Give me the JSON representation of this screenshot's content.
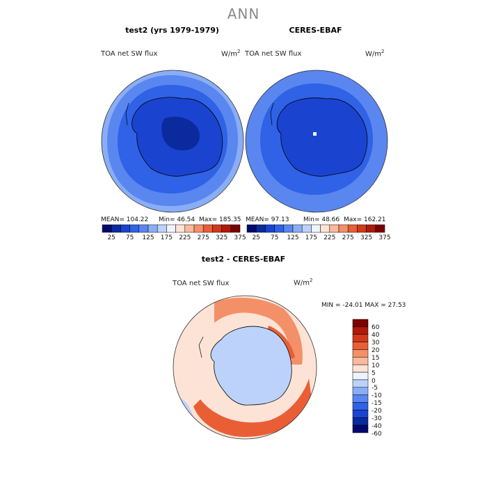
{
  "page": {
    "title": "ANN"
  },
  "panels": [
    {
      "id": "test",
      "title": "test2 (yrs 1979-1979)",
      "variable": "TOA net SW flux",
      "units_base": "W/m",
      "units_exp": "2",
      "stats": {
        "mean": "MEAN=  104.22",
        "min": "Min=   46.54",
        "max": "Max=  185.35"
      }
    },
    {
      "id": "obs",
      "title": "CERES-EBAF",
      "variable": "TOA net SW flux",
      "units_base": "W/m",
      "units_exp": "2",
      "stats": {
        "mean": "MEAN=   97.13",
        "min": "Min=   48.66",
        "max": "Max=  162.21"
      }
    },
    {
      "id": "diff",
      "title": "test2 - CERES-EBAF",
      "variable": "TOA net SW flux",
      "units_base": "W/m",
      "units_exp": "2",
      "stats": {
        "minmax": "MIN = -24.01 MAX =  27.53"
      }
    }
  ],
  "top_colorbar": {
    "colors": [
      "#000a6e",
      "#0a2a9e",
      "#1a44d0",
      "#2f62e6",
      "#5a86f0",
      "#8aaef6",
      "#bcd2fb",
      "#eef3fd",
      "#fde3d5",
      "#f9b99a",
      "#f39068",
      "#ea5e36",
      "#d2391a",
      "#b11a08",
      "#7c0000"
    ],
    "tick_labels": [
      "25",
      "75",
      "125",
      "175",
      "225",
      "275",
      "325",
      "375"
    ]
  },
  "diff_colorbar": {
    "colors": [
      "#000a6e",
      "#0a2a9e",
      "#1a44d0",
      "#2f62e6",
      "#5a86f0",
      "#8aaef6",
      "#bcd2fb",
      "#eef3fd",
      "#fde3d5",
      "#f9b99a",
      "#f39068",
      "#ea5e36",
      "#d2391a",
      "#b11a08",
      "#7c0000"
    ],
    "tick_labels": [
      "60",
      "40",
      "30",
      "20",
      "15",
      "10",
      "5",
      "0",
      "-5",
      "-10",
      "-15",
      "-20",
      "-30",
      "-40",
      "-60"
    ]
  }
}
